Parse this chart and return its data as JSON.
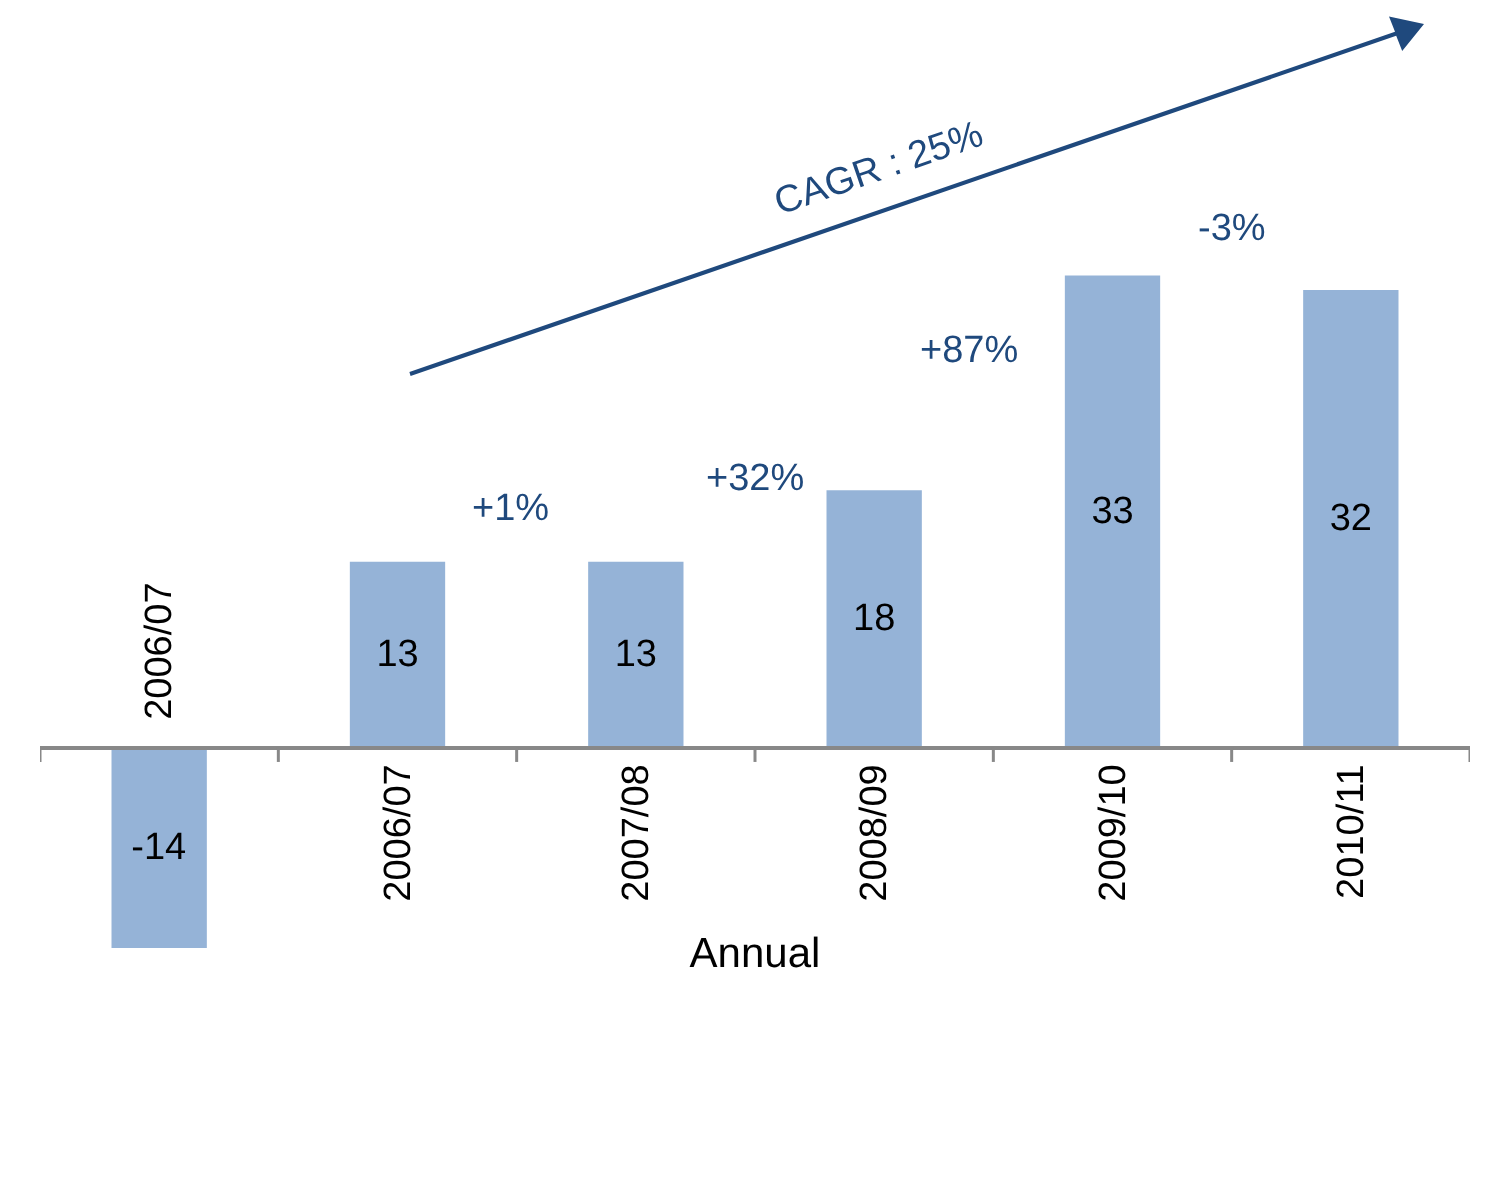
{
  "chart_data": {
    "type": "bar",
    "xlabel": "Annual",
    "categories": [
      "2006/07",
      "2006/07",
      "2007/08",
      "2008/09",
      "2009/10",
      "2010/11"
    ],
    "values": [
      -14,
      13,
      13,
      18,
      33,
      32
    ],
    "color": "#95b3d7",
    "data_labels": true,
    "annotations": [
      "CAGR : 25%",
      "+1%",
      "+32%",
      "+87%",
      "-3%"
    ]
  }
}
